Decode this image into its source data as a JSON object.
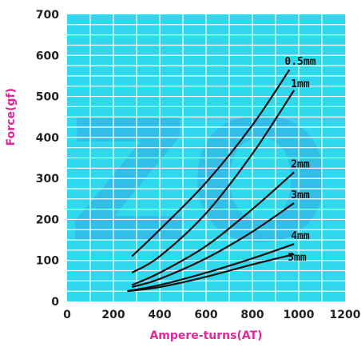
{
  "chart_data": {
    "type": "line",
    "title": "",
    "xlabel": "Ampere-turns(AT)",
    "ylabel": "Force(gf)",
    "xlim": [
      0,
      1200
    ],
    "ylim": [
      0,
      700
    ],
    "xticks": [
      "0",
      "200",
      "400",
      "600",
      "800",
      "1000",
      "1200"
    ],
    "yticks": [
      "0",
      "100",
      "200",
      "300",
      "400",
      "500",
      "600",
      "700"
    ],
    "grid": true,
    "watermark": "ZO",
    "colors": {
      "plot_background": "#2fd8ec",
      "grid": "#ffffff",
      "line": "#111111",
      "axis_title": "#e0289a"
    },
    "series": [
      {
        "name": "0.5mm",
        "x": [
          280,
          400,
          600,
          800,
          960
        ],
        "y": [
          110,
          175,
          290,
          430,
          565
        ]
      },
      {
        "name": "1mm",
        "x": [
          280,
          400,
          600,
          800,
          980
        ],
        "y": [
          70,
          110,
          215,
          360,
          515
        ]
      },
      {
        "name": "2mm",
        "x": [
          280,
          400,
          600,
          800,
          980
        ],
        "y": [
          40,
          70,
          135,
          225,
          315
        ]
      },
      {
        "name": "3mm",
        "x": [
          280,
          400,
          600,
          800,
          980
        ],
        "y": [
          35,
          55,
          105,
          170,
          240
        ]
      },
      {
        "name": "4mm",
        "x": [
          260,
          400,
          600,
          800,
          980
        ],
        "y": [
          25,
          40,
          70,
          105,
          140
        ]
      },
      {
        "name": "5mm",
        "x": [
          260,
          400,
          600,
          800,
          980
        ],
        "y": [
          25,
          35,
          60,
          90,
          115
        ]
      }
    ]
  }
}
